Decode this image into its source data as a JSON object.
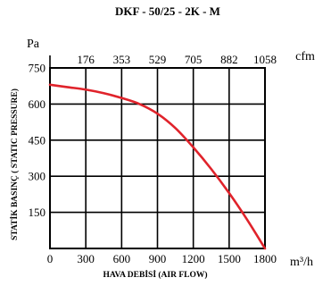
{
  "chart_data": {
    "type": "line",
    "title": "DKF - 50/25 - 2K - M",
    "xlabel": "HAVA DEBİSİ (AIR FLOW)",
    "ylabel": "STATİK BASINÇ ( STATIC PRESSURE)",
    "x_unit": "m³/h",
    "y_unit": "Pa",
    "top_unit": "cfm",
    "xlim": [
      0,
      1800
    ],
    "ylim": [
      0,
      750
    ],
    "x_ticks": [
      0,
      300,
      600,
      900,
      1200,
      1500,
      1800
    ],
    "x_tick_labels": [
      "0",
      "300",
      "600",
      "900",
      "1200",
      "1500",
      "1800"
    ],
    "y_ticks": [
      150,
      300,
      450,
      600,
      750
    ],
    "y_tick_labels": [
      "150",
      "300",
      "450",
      "600",
      "750"
    ],
    "top_ticks": [
      300,
      600,
      900,
      1200,
      1500,
      1800
    ],
    "top_tick_labels": [
      "176",
      "353",
      "529",
      "705",
      "882",
      "1058"
    ],
    "grid": true,
    "series": [
      {
        "color": "#e0232b",
        "x": [
          0,
          150,
          300,
          450,
          600,
          750,
          900,
          1050,
          1200,
          1350,
          1500,
          1650,
          1800
        ],
        "y": [
          680,
          670,
          660,
          645,
          625,
          600,
          560,
          500,
          420,
          330,
          230,
          120,
          0
        ]
      }
    ]
  }
}
